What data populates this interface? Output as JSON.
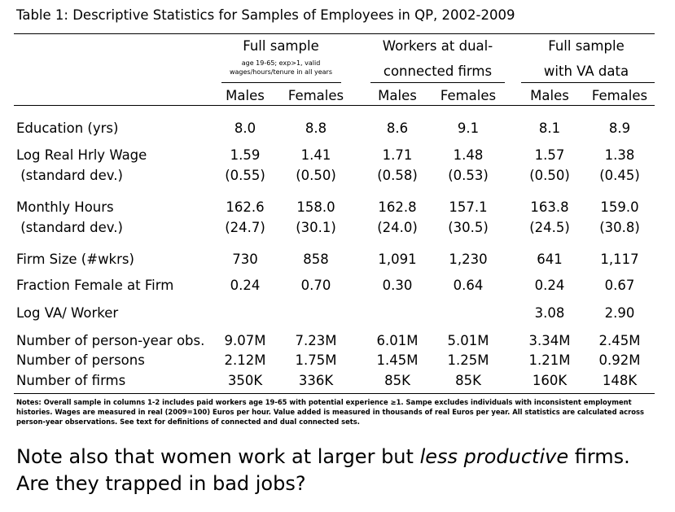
{
  "title": "Table 1: Descriptive Statistics for Samples of Employees in QP, 2002-2009",
  "groups": [
    {
      "line1": "Full sample",
      "note1": "age 19-65; exp>1, valid",
      "note2": "wages/hours/tenure in all years"
    },
    {
      "line1": "Workers at dual-",
      "line2": "connected firms"
    },
    {
      "line1": "Full sample",
      "line2": "with VA data"
    }
  ],
  "subheaders": [
    "Males",
    "Females",
    "Males",
    "Females",
    "Males",
    "Females"
  ],
  "rows": [
    {
      "label": "Education (yrs)",
      "values": [
        "8.0",
        "8.8",
        "8.6",
        "9.1",
        "8.1",
        "8.9"
      ]
    },
    {
      "label": "Log Real Hrly Wage",
      "values": [
        "1.59",
        "1.41",
        "1.71",
        "1.48",
        "1.57",
        "1.38"
      ]
    },
    {
      "label": " (standard dev.)",
      "values": [
        "(0.55)",
        "(0.50)",
        "(0.58)",
        "(0.53)",
        "(0.50)",
        "(0.45)"
      ]
    },
    {
      "label": "Monthly Hours",
      "values": [
        "162.6",
        "158.0",
        "162.8",
        "157.1",
        "163.8",
        "159.0"
      ]
    },
    {
      "label": " (standard dev.)",
      "values": [
        "(24.7)",
        "(30.1)",
        "(24.0)",
        "(30.5)",
        "(24.5)",
        "(30.8)"
      ]
    },
    {
      "label": "Firm Size (#wkrs)",
      "values": [
        "730",
        "858",
        "1,091",
        "1,230",
        "641",
        "1,117"
      ]
    },
    {
      "label": "Fraction Female at Firm",
      "values": [
        "0.24",
        "0.70",
        "0.30",
        "0.64",
        "0.24",
        "0.67"
      ]
    },
    {
      "label": "Log VA/ Worker",
      "values": [
        "",
        "",
        "",
        "",
        "3.08",
        "2.90"
      ]
    },
    {
      "label": "Number of person-year obs.",
      "values": [
        "9.07M",
        "7.23M",
        "6.01M",
        "5.01M",
        "3.34M",
        "2.45M"
      ]
    },
    {
      "label": "Number of persons",
      "values": [
        "2.12M",
        "1.75M",
        "1.45M",
        "1.25M",
        "1.21M",
        "0.92M"
      ]
    },
    {
      "label": "Number of firms",
      "values": [
        "350K",
        "336K",
        "85K",
        "85K",
        "160K",
        "148K"
      ]
    }
  ],
  "notes": "Notes: Overall sample in columns 1-2 includes paid workers age 19-65 with potential experience ≥1. Sampe excludes individuals with inconsistent employment histories. Wages are measured in real (2009=100) Euros per hour. Value added is measured in thousands of real Euros per year. All statistics are calculated across person-year observations. See text for definitions of connected and dual connected sets.",
  "caption": {
    "part1": "Note also that women work at larger but ",
    "emph": "less productive",
    "part2": " firms. Are they trapped in bad jobs?"
  }
}
